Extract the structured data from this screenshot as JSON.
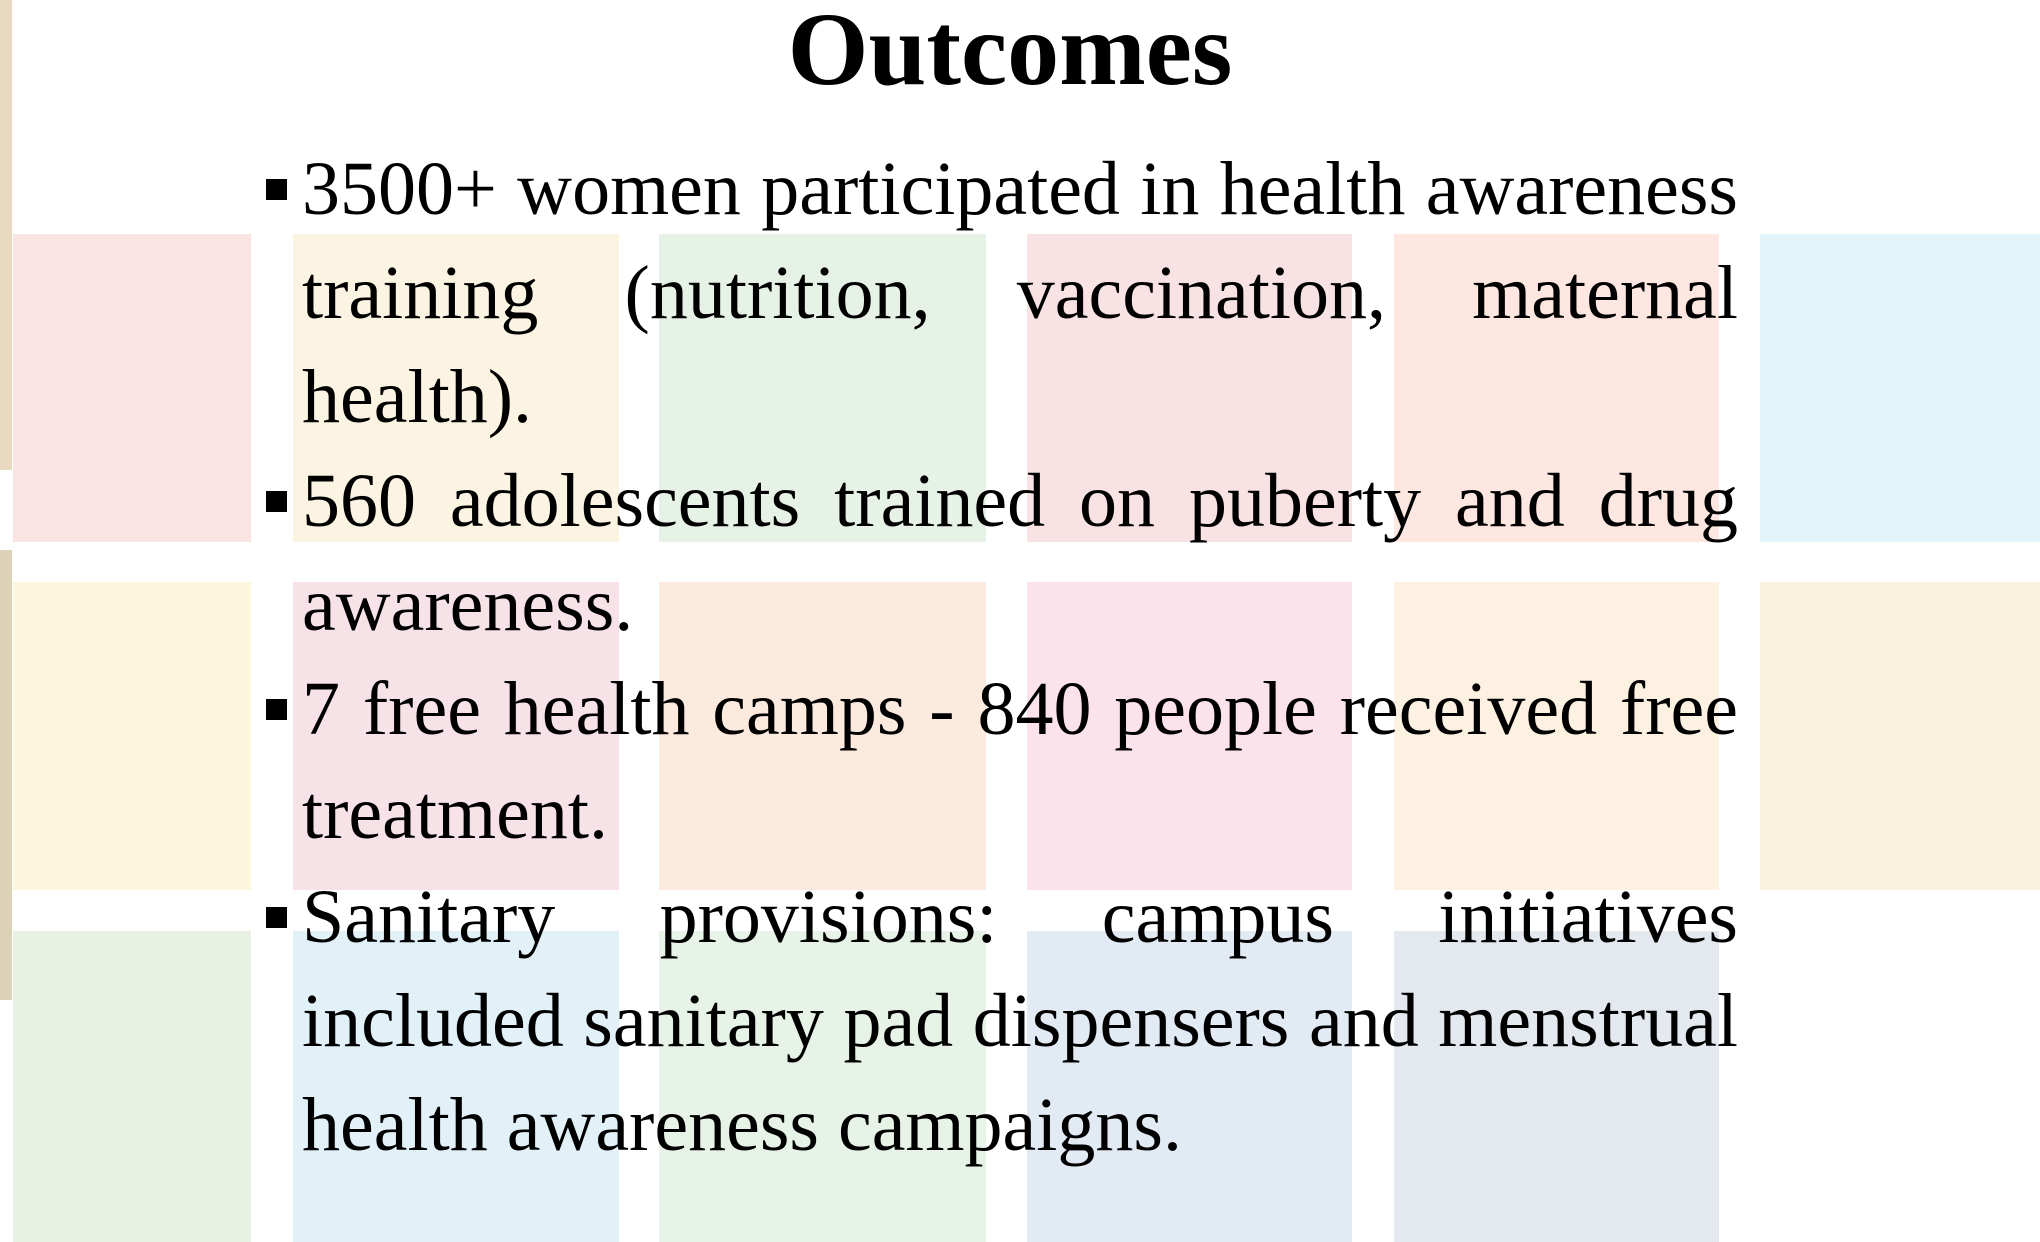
{
  "title": "Outcomes",
  "bullets": [
    "3500+ women participated in health awareness training (nutrition, vaccination, maternal health).",
    "560 adolescents trained on puberty and drug awareness.",
    "7 free health camps - 840 people received free treatment.",
    "Sanitary provisions: campus initiatives included sanitary pad dispensers and menstrual health awareness campaigns."
  ]
}
